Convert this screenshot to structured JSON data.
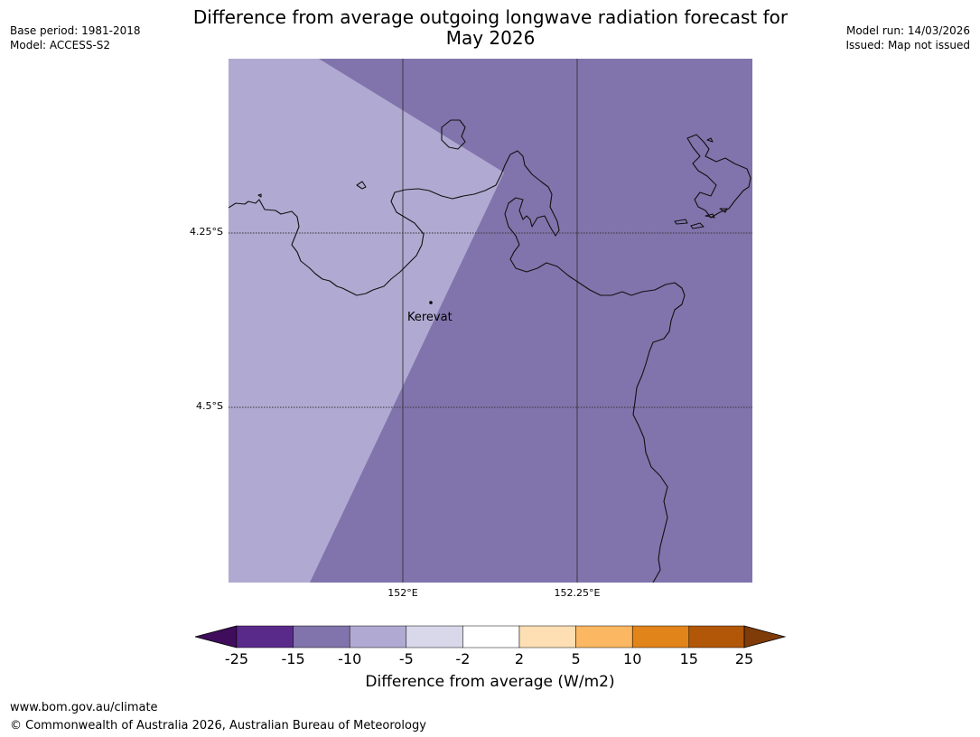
{
  "header": {
    "title_line1": "Difference from average outgoing longwave radiation forecast for",
    "title_line2": "May 2026",
    "base_period": "Base period: 1981-2018",
    "model": "Model: ACCESS-S2",
    "model_run": "Model run: 14/03/2026",
    "issued": "Issued: Map not issued"
  },
  "map": {
    "lat_labels": [
      "4.25°S",
      "4.5°S"
    ],
    "lon_labels": [
      "152°E",
      "152.25°E"
    ],
    "place": "Kerevat",
    "colors": {
      "light_zone": "#b0aad2",
      "mid_zone": "#8174ac",
      "coast": "#000000"
    }
  },
  "colorbar": {
    "ticks": [
      "-25",
      "-15",
      "-10",
      "-5",
      "-2",
      "2",
      "5",
      "10",
      "15",
      "25"
    ],
    "colors": [
      "#3f0d5c",
      "#5a2a8a",
      "#8174ac",
      "#b0aad2",
      "#d9d8ea",
      "#ffffff",
      "#fddfb3",
      "#fbb761",
      "#e1841a",
      "#b25708",
      "#7f3b08"
    ],
    "label": "Difference from average (W/m2)"
  },
  "footer": {
    "url": "www.bom.gov.au/climate",
    "copyright": "© Commonwealth of Australia 2026, Australian Bureau of Meteorology"
  }
}
